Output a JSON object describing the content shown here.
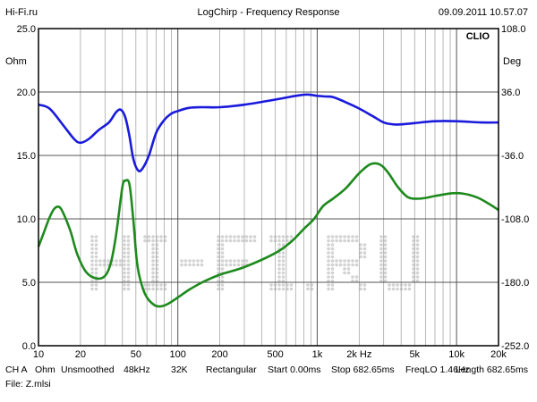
{
  "header": {
    "site": "Hi-Fi.ru",
    "title": "LogChirp - Frequency Response",
    "datetime": "09.09.2011 10.57.07"
  },
  "brand": "CLIO",
  "watermark": "HI-FI.RU",
  "colors": {
    "impedance": "#1a1adc",
    "phase": "#1e8a1e",
    "grid": "#9a9a9a",
    "frame": "#000000"
  },
  "chart_data": {
    "type": "line",
    "x_scale": "log",
    "xlim": [
      10,
      20000
    ],
    "x_ticks": [
      {
        "v": 10,
        "label": "10"
      },
      {
        "v": 20,
        "label": "20"
      },
      {
        "v": 50,
        "label": "50"
      },
      {
        "v": 100,
        "label": "100"
      },
      {
        "v": 200,
        "label": "200"
      },
      {
        "v": 500,
        "label": "500"
      },
      {
        "v": 1000,
        "label": "1k"
      },
      {
        "v": 2000,
        "label": "2k Hz"
      },
      {
        "v": 5000,
        "label": "5k"
      },
      {
        "v": 10000,
        "label": "10k"
      },
      {
        "v": 20000,
        "label": "20k"
      }
    ],
    "y_left": {
      "unit": "Ohm",
      "ylim": [
        0,
        25
      ],
      "ticks": [
        {
          "v": 0,
          "label": "0.0"
        },
        {
          "v": 5,
          "label": "5.0"
        },
        {
          "v": 10,
          "label": "10.0"
        },
        {
          "v": 15,
          "label": "15.0"
        },
        {
          "v": 20,
          "label": "20.0"
        },
        {
          "v": 25,
          "label": "25.0"
        }
      ]
    },
    "y_right": {
      "unit": "Deg",
      "ylim": [
        -252,
        108
      ],
      "ticks": [
        {
          "v": 108,
          "label": "108.0"
        },
        {
          "v": 36,
          "label": "36.0"
        },
        {
          "v": -36,
          "label": "-36.0"
        },
        {
          "v": -108,
          "label": "-108.0"
        },
        {
          "v": -180,
          "label": "-180.0"
        },
        {
          "v": -252,
          "label": "-252.0"
        }
      ]
    },
    "grid": true,
    "series": [
      {
        "axis": "left",
        "color": "#1a1adc",
        "x": [
          10,
          12,
          15,
          18,
          20,
          23,
          27,
          32,
          36,
          39,
          42,
          45,
          48,
          52,
          56,
          62,
          70,
          80,
          90,
          100,
          120,
          150,
          200,
          300,
          500,
          700,
          850,
          1000,
          1150,
          1300,
          1600,
          2000,
          2500,
          3000,
          3500,
          4000,
          5000,
          7000,
          10000,
          15000,
          20000
        ],
        "y": [
          19.0,
          18.7,
          17.4,
          16.3,
          16.0,
          16.3,
          17.0,
          17.6,
          18.4,
          18.6,
          18.0,
          16.5,
          14.7,
          13.8,
          14.0,
          15.0,
          16.8,
          17.8,
          18.3,
          18.5,
          18.75,
          18.8,
          18.8,
          19.0,
          19.4,
          19.7,
          19.8,
          19.7,
          19.65,
          19.6,
          19.2,
          18.7,
          18.1,
          17.6,
          17.45,
          17.45,
          17.55,
          17.7,
          17.7,
          17.6,
          17.6
        ]
      },
      {
        "axis": "left",
        "color": "#1e8a1e",
        "x": [
          10,
          11,
          12,
          13,
          14,
          15,
          17,
          19,
          22,
          26,
          30,
          33,
          36,
          40,
          42,
          45,
          48,
          51,
          55,
          60,
          68,
          75,
          85,
          100,
          120,
          150,
          200,
          300,
          500,
          650,
          800,
          950,
          1100,
          1300,
          1600,
          2000,
          2400,
          2800,
          3200,
          3800,
          4500,
          5500,
          7000,
          9000,
          11000,
          14000,
          17000,
          20000
        ],
        "y": [
          7.8,
          9.0,
          10.1,
          10.8,
          10.95,
          10.5,
          9.0,
          7.2,
          5.8,
          5.3,
          5.5,
          6.5,
          8.7,
          12.5,
          13.0,
          12.7,
          9.8,
          6.5,
          4.8,
          3.8,
          3.2,
          3.1,
          3.3,
          3.8,
          4.4,
          5.0,
          5.6,
          6.2,
          7.3,
          8.2,
          9.2,
          10.0,
          11.0,
          11.6,
          12.4,
          13.6,
          14.3,
          14.3,
          13.7,
          12.5,
          11.7,
          11.6,
          11.8,
          12.0,
          12.0,
          11.7,
          11.2,
          10.7
        ]
      }
    ]
  },
  "footer": {
    "line1": [
      "CH A",
      "Ohm",
      "Unsmoothed",
      "48kHz",
      "32K",
      "Rectangular",
      "Start 0.00ms",
      "Stop 682.65ms",
      "FreqLO 1.46Hz",
      "Length 682.65ms"
    ],
    "line2": "File: Z.mlsi"
  }
}
